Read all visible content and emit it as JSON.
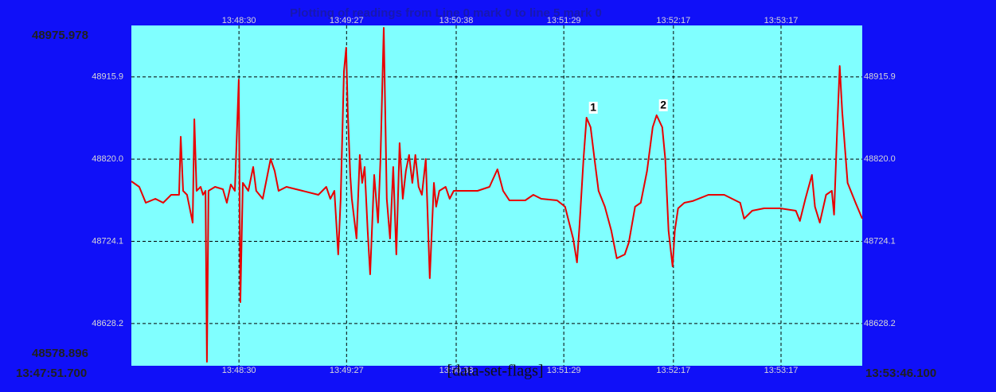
{
  "chart_data": {
    "type": "line",
    "title": "Plotting of readings from Line 0 mark 0 to line 5 mark 0",
    "overlay_text": "[data-set-flags]",
    "x_start_label": "13:47:51.700",
    "x_end_label": "13:53:46.100",
    "xlim": [
      0,
      360
    ],
    "xticks": [
      {
        "value": 53,
        "label": "13:48:30"
      },
      {
        "value": 106,
        "label": "13:49:27"
      },
      {
        "value": 160,
        "label": "13:50:38"
      },
      {
        "value": 213,
        "label": "13:51:29"
      },
      {
        "value": 267,
        "label": "13:52:17"
      },
      {
        "value": 320,
        "label": "13:53:17"
      }
    ],
    "ylim": [
      48578.896,
      48975.978
    ],
    "yticks": [
      48628.2,
      48724.1,
      {
        "value": 48820,
        "label": "48820.0"
      },
      48915.9
    ],
    "grid": true,
    "color": "#e80000",
    "x": [
      0,
      3.9,
      7.1,
      11.8,
      15.7,
      19.6,
      23.5,
      24.3,
      25.5,
      27.4,
      30.2,
      31.0,
      32.1,
      34.1,
      35.3,
      36.5,
      37.2,
      38.0,
      41.2,
      45.1,
      47.0,
      49.0,
      51.0,
      52.9,
      53.7,
      54.9,
      57.6,
      60.0,
      61.5,
      64.7,
      68.6,
      70.6,
      72.5,
      76.4,
      84.3,
      92.1,
      96.0,
      98.0,
      100.0,
      101.9,
      103.1,
      104.7,
      105.8,
      106.6,
      107.8,
      108.6,
      110.9,
      112.5,
      113.7,
      114.9,
      116.4,
      117.6,
      119.6,
      121.5,
      122.7,
      124.3,
      125.8,
      127.4,
      129.0,
      130.5,
      132.1,
      133.7,
      135.2,
      136.8,
      138.4,
      139.9,
      141.5,
      143.1,
      145.0,
      147.0,
      149.0,
      150.1,
      151.7,
      154.8,
      156.8,
      158.8,
      162.7,
      170.5,
      176.4,
      180.3,
      183.1,
      186.2,
      194.0,
      198.0,
      201.9,
      209.7,
      213.6,
      217.6,
      219.5,
      220.7,
      222.7,
      224.2,
      226.2,
      228.1,
      230.1,
      233.2,
      236.4,
      239.1,
      243.0,
      245.0,
      248.1,
      250.9,
      254.0,
      256.8,
      258.7,
      261.5,
      263.0,
      264.6,
      266.6,
      267.7,
      269.3,
      272.4,
      276.4,
      284.2,
      292.0,
      299.9,
      301.8,
      305.8,
      311.6,
      319.5,
      327.3,
      329.3,
      332.0,
      335.2,
      336.7,
      339.1,
      342.2,
      345.0,
      346.1,
      347.7,
      348.9,
      350.1,
      352.8,
      356.7,
      360
    ],
    "values": [
      48794.1,
      48787.6,
      48769.1,
      48773.7,
      48769.1,
      48778.4,
      48778.4,
      48846.1,
      48783.0,
      48778.4,
      48745.9,
      48866.5,
      48783.0,
      48787.6,
      48778.4,
      48783.0,
      48583.5,
      48783.0,
      48787.6,
      48784.9,
      48769.1,
      48790.4,
      48783.0,
      48912.9,
      48653.1,
      48792.3,
      48783.0,
      48810.8,
      48783.0,
      48773.7,
      48820.1,
      48806.2,
      48783.0,
      48787.6,
      48783.0,
      48778.4,
      48787.6,
      48773.7,
      48783.0,
      48708.8,
      48773.7,
      48922.2,
      48950.0,
      48875.8,
      48801.6,
      48773.7,
      48727.3,
      48824.8,
      48792.3,
      48810.8,
      48736.6,
      48685.6,
      48801.6,
      48745.9,
      48820.1,
      48973.2,
      48773.7,
      48727.3,
      48810.8,
      48708.8,
      48838.7,
      48773.7,
      48806.2,
      48824.8,
      48792.3,
      48824.8,
      48787.6,
      48778.4,
      48820.1,
      48681.0,
      48792.3,
      48764.5,
      48783.0,
      48787.6,
      48773.7,
      48783.0,
      48783.0,
      48783.0,
      48787.6,
      48808.1,
      48783.0,
      48771.9,
      48771.9,
      48778.4,
      48773.7,
      48771.9,
      48764.5,
      48727.3,
      48699.5,
      48741.3,
      48820.1,
      48868.4,
      48857.2,
      48820.1,
      48783.0,
      48764.5,
      48736.6,
      48704.2,
      48708.8,
      48722.7,
      48764.5,
      48769.1,
      48806.2,
      48857.2,
      48871.2,
      48857.2,
      48820.1,
      48736.6,
      48694.9,
      48736.6,
      48762.6,
      48769.1,
      48771.0,
      48778.4,
      48778.4,
      48769.1,
      48750.5,
      48759.8,
      48762.6,
      48762.6,
      48759.8,
      48747.8,
      48773.7,
      48801.6,
      48764.5,
      48745.9,
      48778.4,
      48783.0,
      48755.2,
      48857.2,
      48928.7,
      48875.8,
      48792.3,
      48769.1,
      48750.5
    ],
    "annotations": [
      {
        "text": "1",
        "x": 224.2,
        "y": 48868.4
      },
      {
        "text": "2",
        "x": 258.7,
        "y": 48871.2
      }
    ]
  }
}
